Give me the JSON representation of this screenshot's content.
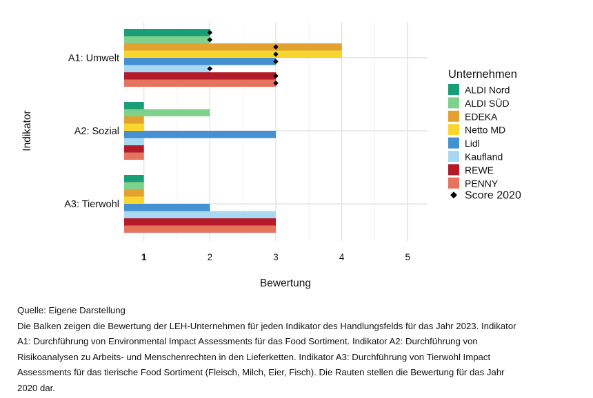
{
  "chart_data": {
    "type": "bar",
    "orientation": "horizontal",
    "categories": [
      "A1: Umwelt",
      "A2: Sozial",
      "A3: Tierwohl"
    ],
    "series": [
      {
        "name": "ALDI Nord",
        "color": "#1a9e77",
        "values": [
          2,
          1,
          1
        ],
        "score_2020": [
          2,
          null,
          null
        ]
      },
      {
        "name": "ALDI SÜD",
        "color": "#7fd18b",
        "values": [
          2,
          2,
          1
        ],
        "score_2020": [
          2,
          null,
          null
        ]
      },
      {
        "name": "EDEKA",
        "color": "#e2a22f",
        "values": [
          4,
          1,
          1
        ],
        "score_2020": [
          3,
          null,
          null
        ]
      },
      {
        "name": "Netto MD",
        "color": "#f9d62e",
        "values": [
          4,
          1,
          1
        ],
        "score_2020": [
          3,
          null,
          null
        ]
      },
      {
        "name": "Lidl",
        "color": "#4490d0",
        "values": [
          3,
          3,
          2
        ],
        "score_2020": [
          3,
          null,
          null
        ]
      },
      {
        "name": "Kaufland",
        "color": "#a9d8f3",
        "values": [
          2,
          1,
          3
        ],
        "score_2020": [
          2,
          null,
          null
        ]
      },
      {
        "name": "REWE",
        "color": "#b41b2a",
        "values": [
          3,
          1,
          3
        ],
        "score_2020": [
          3,
          null,
          null
        ]
      },
      {
        "name": "PENNY",
        "color": "#e5735d",
        "values": [
          3,
          1,
          3
        ],
        "score_2020": [
          3,
          null,
          null
        ]
      }
    ],
    "xlabel": "Bewertung",
    "ylabel": "Indikator",
    "xlim": [
      0.7,
      5.3
    ],
    "xticks": [
      "1",
      "2",
      "3",
      "4",
      "5"
    ],
    "grid": true,
    "legend": {
      "title": "Unternehmen",
      "placement": "right",
      "marker_label": "Score 2020"
    }
  },
  "caption": {
    "lines": [
      "Quelle: Eigene Darstellung",
      "Die Balken zeigen die Bewertung der LEH-Unternehmen für jeden Indikator des Handlungsfelds für das Jahr 2023. Indikator",
      "A1: Durchführung von Environmental Impact Assessments für das Food Sortiment. Indikator A2: Durchführung von",
      "Risikoanalysen zu Arbeits- und Menschenrechten in den Lieferketten. Indikator A3: Durchführung von Tierwohl Impact",
      "Assessments für das tierische Food Sortiment (Fleisch, Milch, Eier, Fisch). Die Rauten stellen die Bewertung für das Jahr",
      "2020 dar."
    ]
  }
}
